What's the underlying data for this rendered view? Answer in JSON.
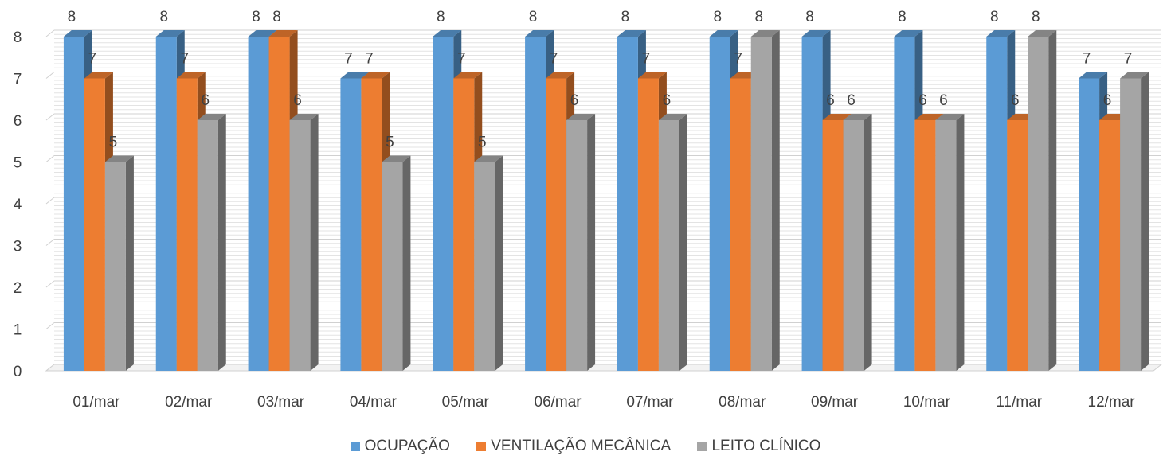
{
  "chart_data": {
    "type": "bar",
    "title": "",
    "xlabel": "",
    "ylabel": "",
    "ylim": [
      0,
      8
    ],
    "yticks": [
      0,
      1,
      2,
      3,
      4,
      5,
      6,
      7,
      8
    ],
    "grid": true,
    "legend_position": "bottom",
    "categories": [
      "01/mar",
      "02/mar",
      "03/mar",
      "04/mar",
      "05/mar",
      "06/mar",
      "07/mar",
      "08/mar",
      "09/mar",
      "10/mar",
      "11/mar",
      "12/mar"
    ],
    "series": [
      {
        "name": "OCUPAÇÃO",
        "color": "#5B9BD5",
        "values": [
          8,
          8,
          8,
          7,
          8,
          8,
          8,
          8,
          8,
          8,
          8,
          7
        ]
      },
      {
        "name": "VENTILAÇÃO MECÂNICA",
        "color": "#ED7D31",
        "values": [
          7,
          7,
          8,
          7,
          7,
          7,
          7,
          7,
          6,
          6,
          6,
          6
        ]
      },
      {
        "name": "LEITO CLÍNICO",
        "color": "#A5A5A5",
        "values": [
          5,
          6,
          6,
          5,
          5,
          6,
          6,
          8,
          6,
          6,
          8,
          7
        ]
      }
    ]
  }
}
